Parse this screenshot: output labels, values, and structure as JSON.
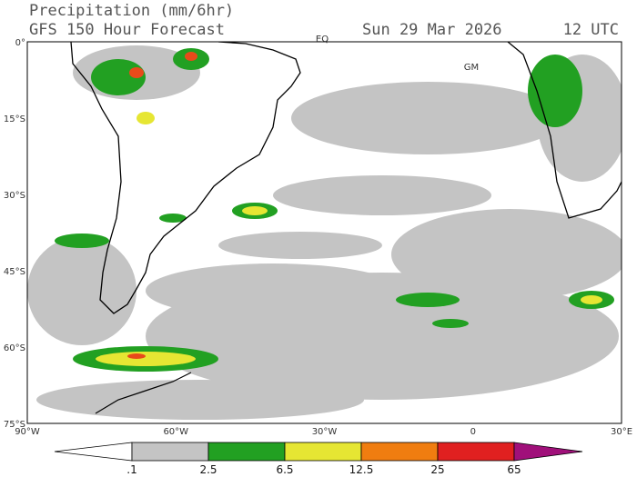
{
  "header": {
    "title": "Precipitation (mm/6hr)",
    "subtitle": "GFS 150 Hour Forecast",
    "date": "Sun 29 Mar 2026",
    "time": "12 UTC"
  },
  "map": {
    "lat_labels": [
      "0°",
      "15°S",
      "30°S",
      "45°S",
      "60°S",
      "75°S"
    ],
    "lon_labels": [
      "90°W",
      "60°W",
      "30°W",
      "0",
      "30°E"
    ],
    "annotations": [
      "EQ",
      "GM"
    ]
  },
  "colorbar": {
    "labels": [
      ".1",
      "2.5",
      "6.5",
      "12.5",
      "25",
      "65"
    ]
  }
}
